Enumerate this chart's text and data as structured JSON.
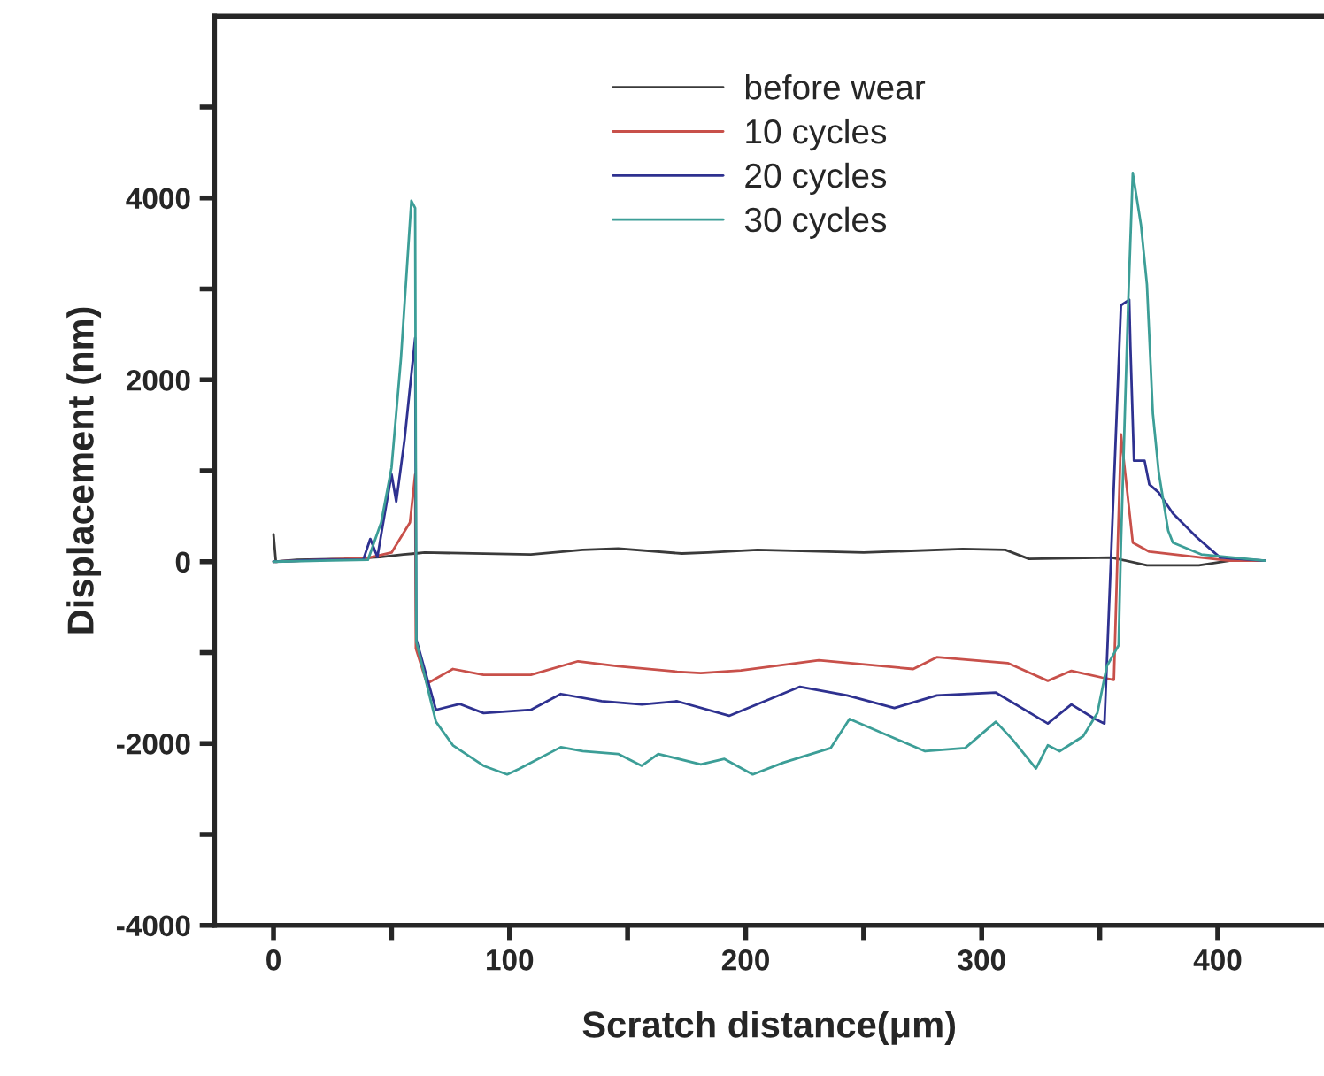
{
  "chart_data": {
    "type": "line",
    "xlabel": "Scratch distance(μm)",
    "ylabel": "Displacement (nm)",
    "xlim": [
      -25,
      445
    ],
    "ylim": [
      -4000,
      6000
    ],
    "xticks": [
      0,
      {
        "value": 50,
        "label": null
      },
      100,
      {
        "value": 150,
        "label": null
      },
      200,
      {
        "value": 250,
        "label": null
      },
      300,
      {
        "value": 350,
        "label": null
      },
      400
    ],
    "yticks": [
      -4000,
      {
        "value": -3000,
        "label": null
      },
      -2000,
      {
        "value": -1000,
        "label": null
      },
      0,
      {
        "value": 1000,
        "label": null
      },
      2000,
      {
        "value": 3000,
        "label": null
      },
      4000,
      {
        "value": 5000,
        "label": null
      }
    ],
    "grid": false,
    "legend": "top",
    "marker": "none",
    "line_style": "solid",
    "series": [
      {
        "name": "before wear",
        "color": "#3a3a3a",
        "x": [
          0,
          1,
          10,
          30,
          45,
          55,
          60,
          64,
          109,
          131,
          146,
          173,
          184,
          205,
          250,
          292,
          310,
          320,
          355,
          370,
          392,
          405,
          420
        ],
        "values": [
          300,
          0,
          20,
          30,
          50,
          80,
          90,
          100,
          80,
          130,
          145,
          90,
          100,
          130,
          100,
          140,
          130,
          30,
          45,
          -40,
          -40,
          10,
          10
        ]
      },
      {
        "name": "10 cycles",
        "color": "#c8504a",
        "x": [
          0,
          40,
          50,
          57.8,
          60,
          60.3,
          65,
          76,
          89,
          109,
          129,
          146,
          171,
          181,
          198,
          231,
          271,
          281,
          311,
          328,
          338,
          351,
          356,
          359,
          364,
          371,
          393,
          405,
          420
        ],
        "values": [
          0,
          40,
          100,
          430,
          960,
          -955,
          -1340,
          -1180,
          -1245,
          -1245,
          -1095,
          -1150,
          -1210,
          -1225,
          -1195,
          -1085,
          -1180,
          -1050,
          -1115,
          -1310,
          -1200,
          -1275,
          -1300,
          1400,
          210,
          110,
          45,
          10,
          10
        ]
      },
      {
        "name": "20 cycles",
        "color": "#2e3190",
        "x": [
          0,
          20,
          38,
          41,
          44,
          47,
          50,
          52,
          55.5,
          60,
          60.5,
          68.8,
          78.8,
          89,
          109,
          121.7,
          139,
          156,
          171,
          193,
          223,
          243,
          263,
          281,
          306,
          328,
          338,
          348,
          352,
          359,
          362.5,
          363,
          364.5,
          369,
          371,
          375,
          381,
          391,
          401,
          420
        ],
        "values": [
          0,
          20,
          20,
          250,
          50,
          510,
          960,
          660,
          1340,
          2460,
          -855,
          -1630,
          -1565,
          -1665,
          -1630,
          -1455,
          -1535,
          -1570,
          -1535,
          -1695,
          -1375,
          -1470,
          -1610,
          -1470,
          -1440,
          -1780,
          -1570,
          -1730,
          -1780,
          2820,
          2880,
          2370,
          1110,
          1110,
          850,
          760,
          530,
          270,
          45,
          10
        ]
      },
      {
        "name": "30 cycles",
        "color": "#3c9e97",
        "x": [
          0,
          20,
          40,
          45.6,
          50,
          54,
          58.4,
          60,
          60.5,
          68.8,
          76,
          89,
          99,
          104,
          121.7,
          131,
          146,
          156,
          163,
          181,
          191,
          203,
          216,
          236,
          244,
          261,
          276,
          293,
          306,
          313,
          323,
          328,
          333,
          343,
          349,
          353,
          358,
          359,
          362,
          364,
          367.5,
          370,
          372.5,
          375,
          379,
          381,
          393,
          420
        ],
        "values": [
          0,
          10,
          20,
          430,
          1035,
          2240,
          3970,
          3890,
          -880,
          -1760,
          -2020,
          -2245,
          -2340,
          -2280,
          -2040,
          -2085,
          -2115,
          -2245,
          -2115,
          -2230,
          -2170,
          -2340,
          -2210,
          -2050,
          -1730,
          -1920,
          -2085,
          -2050,
          -1760,
          -1955,
          -2275,
          -2020,
          -2085,
          -1920,
          -1665,
          -1150,
          -920,
          200,
          2800,
          4275,
          3700,
          3050,
          1630,
          980,
          340,
          210,
          80,
          10
        ]
      }
    ]
  }
}
